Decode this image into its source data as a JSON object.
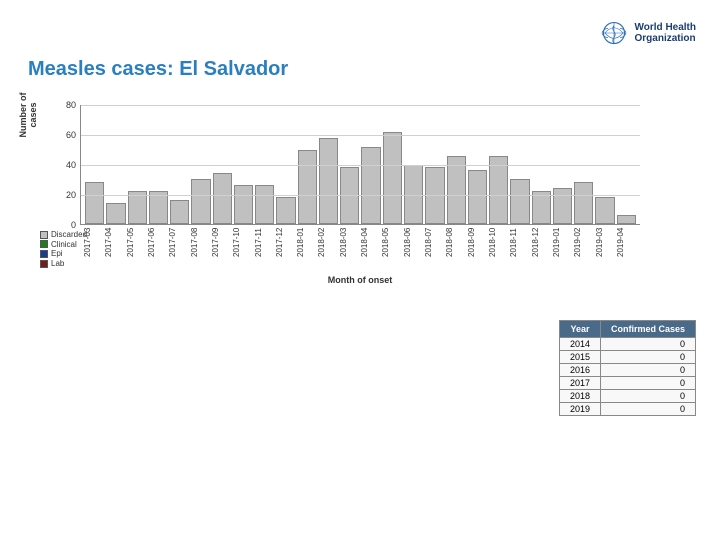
{
  "branding": {
    "org_line1": "World Health",
    "org_line2": "Organization",
    "emblem_color": "#2a6ebb"
  },
  "title": {
    "text": "Measles cases: El Salvador",
    "color": "#2a7fbf",
    "fontsize": 20
  },
  "chart": {
    "type": "bar",
    "ylabel": "Number of cases",
    "xlabel": "Month of onset",
    "ylim": [
      0,
      80
    ],
    "ytick_step": 20,
    "yticks": [
      0,
      20,
      40,
      60,
      80
    ],
    "bar_fill": "#c0c0c0",
    "bar_border": "#888888",
    "grid_color": "#d0d0d0",
    "background": "#ffffff",
    "categories": [
      "2017-03",
      "2017-04",
      "2017-05",
      "2017-06",
      "2017-07",
      "2017-08",
      "2017-09",
      "2017-10",
      "2017-11",
      "2017-12",
      "2018-01",
      "2018-02",
      "2018-03",
      "2018-04",
      "2018-05",
      "2018-06",
      "2018-07",
      "2018-08",
      "2018-09",
      "2018-10",
      "2018-11",
      "2018-12",
      "2019-01",
      "2019-02",
      "2019-03",
      "2019-04"
    ],
    "values": [
      28,
      14,
      22,
      22,
      16,
      30,
      34,
      26,
      26,
      18,
      50,
      58,
      38,
      52,
      62,
      40,
      38,
      46,
      36,
      46,
      30,
      22,
      24,
      28,
      18,
      6
    ],
    "legend": [
      {
        "label": "Discarded",
        "color": "#c0c0c0"
      },
      {
        "label": "Clinical",
        "color": "#1a7f1a"
      },
      {
        "label": "Epi",
        "color": "#1a3e8f"
      },
      {
        "label": "Lab",
        "color": "#7a1a1a"
      }
    ]
  },
  "table": {
    "columns": [
      "Year",
      "Confirmed Cases"
    ],
    "header_bg": "#4a6a8a",
    "header_fg": "#ffffff",
    "cell_bg": "#f8f8f8",
    "border": "#888888",
    "rows": [
      [
        "2014",
        "0"
      ],
      [
        "2015",
        "0"
      ],
      [
        "2016",
        "0"
      ],
      [
        "2017",
        "0"
      ],
      [
        "2018",
        "0"
      ],
      [
        "2019",
        "0"
      ]
    ]
  }
}
